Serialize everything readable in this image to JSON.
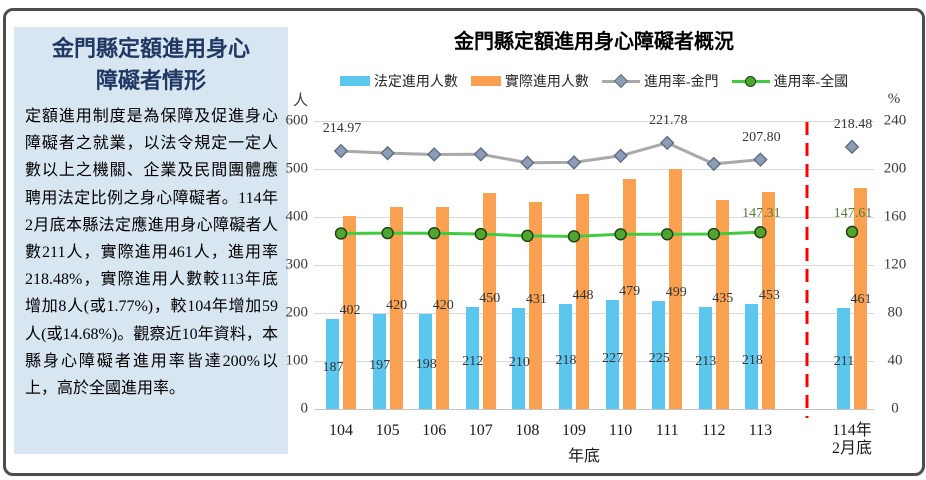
{
  "sidebar": {
    "title_lines": [
      "金門縣定額進用身心",
      "障礙者情形"
    ],
    "body": "定額進用制度是為保障及促進身心障礙者之就業，以法令規定一定人數以上之機關、企業及民間團體應聘用法定比例之身心障礙者。114年2月底本縣法定應進用身心障礙者人數211人，實際進用461人，進用率218.48%，實際進用人數較113年底增加8人(或1.77%)，較104年增加59人(或14.68%)。觀察近10年資料，本縣身心障礙者進用率皆達200%以上，高於全國進用率。"
  },
  "chart_data": {
    "type": "bar+line combo",
    "title": "金門縣定額進用身心障礙者概況",
    "categories": [
      "104",
      "105",
      "106",
      "107",
      "108",
      "109",
      "110",
      "111",
      "112",
      "113",
      "114年\n2月底"
    ],
    "xlabel": "年底",
    "left_axis": {
      "label": "人",
      "min": 0,
      "max": 600,
      "step": 100
    },
    "right_axis": {
      "label": "%",
      "min": 0,
      "max": 240,
      "step": 40
    },
    "grid": true,
    "legend_position": "top",
    "separator": {
      "after_index": 9,
      "color": "#ff0000",
      "style": "dashed"
    },
    "series": [
      {
        "name": "法定進用人數",
        "type": "bar",
        "axis": "left",
        "color": "#5bc6ee",
        "values": [
          187,
          197,
          198,
          212,
          210,
          218,
          227,
          225,
          213,
          218,
          211
        ],
        "show_labels": true
      },
      {
        "name": "實際進用人數",
        "type": "bar",
        "axis": "left",
        "color": "#f9a150",
        "values": [
          402,
          420,
          420,
          450,
          431,
          448,
          479,
          499,
          435,
          453,
          461
        ],
        "show_labels": true
      },
      {
        "name": "進用率-金門",
        "type": "line",
        "axis": "right",
        "color": "#a9a9a9",
        "marker": "diamond",
        "marker_color": "#8d9db6",
        "marker_border": "#5d6e84",
        "label_color": "#353535",
        "values": [
          214.97,
          213.2,
          212.12,
          212.26,
          205.24,
          205.5,
          211.01,
          221.78,
          204.23,
          207.8,
          218.48
        ],
        "labels": {
          "0": "214.97",
          "7": "221.78",
          "9": "207.80",
          "10": "218.48"
        }
      },
      {
        "name": "進用率-全國",
        "type": "line",
        "axis": "right",
        "color": "#40cc3e",
        "marker": "circle",
        "marker_color": "#4fa52f",
        "marker_border": "#1e3d10",
        "label_color": "#557e34",
        "values": [
          146.3,
          146.6,
          146.5,
          145.8,
          144.3,
          143.9,
          145.6,
          145.6,
          145.8,
          147.31,
          147.61
        ],
        "labels": {
          "9": "147.31",
          "10": "147.61"
        }
      }
    ]
  }
}
